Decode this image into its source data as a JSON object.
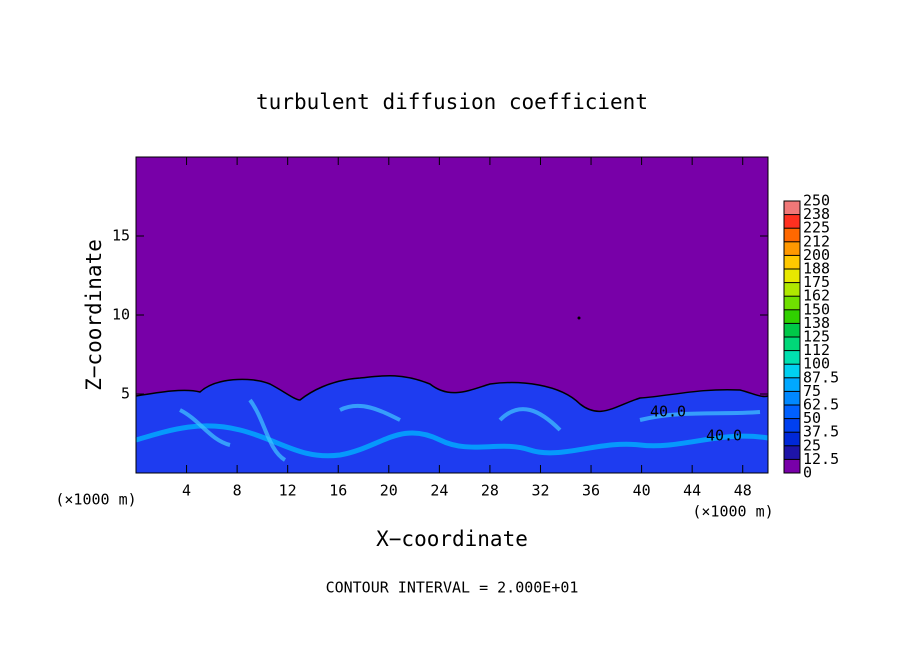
{
  "chart_data": {
    "type": "contour",
    "title": "turbulent diffusion coefficient",
    "x_label": "X−coordinate",
    "y_label": "Z−coordinate",
    "z_unit_label": "(×1000 m)",
    "x_unit_label": "(×1000 m)",
    "footer": "CONTOUR INTERVAL = 2.000E+01",
    "contour_labels": [
      "40.0",
      "40.0"
    ],
    "xlim": [
      0,
      50
    ],
    "xticks": [
      4,
      8,
      12,
      16,
      20,
      24,
      28,
      32,
      36,
      40,
      44,
      48
    ],
    "ylim": [
      0,
      20
    ],
    "yticks": [
      5,
      10,
      15
    ],
    "colorbar": {
      "ticks": [
        0,
        12.5,
        25,
        37.5,
        50,
        62.5,
        75,
        87.5,
        100,
        {
          "value": 112.5,
          "label": "112"
        },
        125,
        {
          "value": 137.5,
          "label": "138"
        },
        150,
        {
          "value": 162.5,
          "label": "162"
        },
        175,
        {
          "value": 187.5,
          "label": "188"
        },
        200,
        {
          "value": 212.5,
          "label": "212"
        },
        225,
        {
          "value": 237.5,
          "label": "238"
        },
        250
      ],
      "colors": [
        "#7800a8",
        "#1e14a8",
        "#0028d8",
        "#0040f0",
        "#0060ff",
        "#0088ff",
        "#00a8ff",
        "#00d0f0",
        "#00e0b0",
        "#00d878",
        "#00c848",
        "#30d000",
        "#70e000",
        "#b0e800",
        "#e8e800",
        "#ffc800",
        "#ff9800",
        "#ff6800",
        "#ff3020",
        "#f07878"
      ]
    }
  }
}
